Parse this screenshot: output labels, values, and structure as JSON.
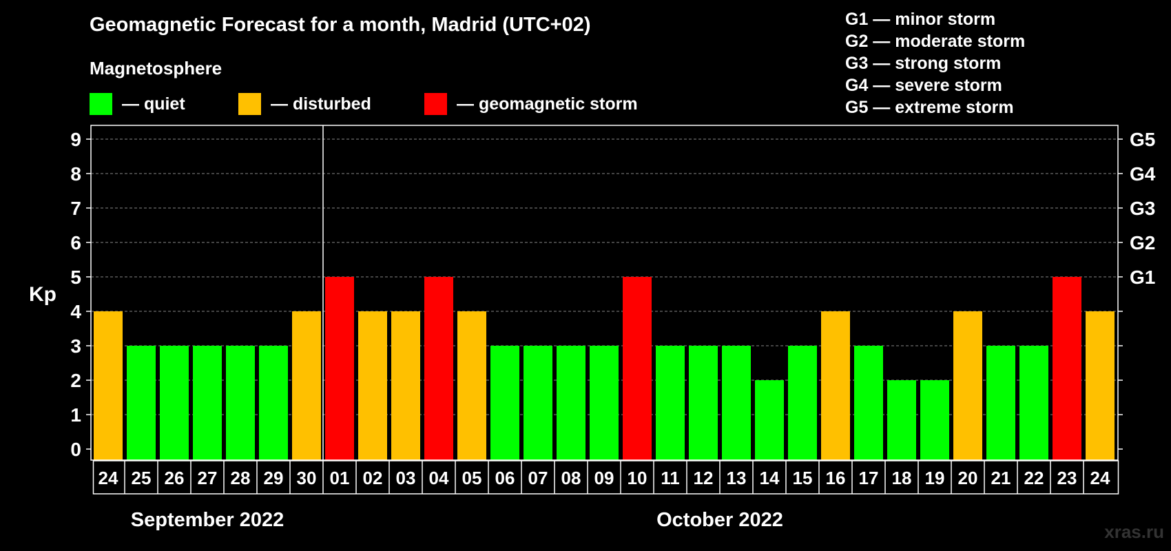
{
  "header": {
    "title": "Geomagnetic Forecast for a month, Madrid (UTC+02)",
    "subtitle": "Magnetosphere"
  },
  "legend": [
    {
      "label": "— quiet",
      "color": "#00ff00"
    },
    {
      "label": "— disturbed",
      "color": "#ffc000"
    },
    {
      "label": "— geomagnetic storm",
      "color": "#ff0000"
    }
  ],
  "storm_levels": [
    "G1 — minor storm",
    "G2 — moderate storm",
    "G3 — strong storm",
    "G4 — severe storm",
    "G5 — extreme storm"
  ],
  "watermark": "xras.ru",
  "chart_data": {
    "type": "bar",
    "ylabel": "Kp",
    "ylim": [
      0,
      9
    ],
    "yticks": [
      "0",
      "1",
      "2",
      "3",
      "4",
      "5",
      "6",
      "7",
      "8",
      "9"
    ],
    "right_ticks": [
      {
        "value": 5,
        "label": "G1"
      },
      {
        "value": 6,
        "label": "G2"
      },
      {
        "value": 7,
        "label": "G3"
      },
      {
        "value": 8,
        "label": "G4"
      },
      {
        "value": 9,
        "label": "G5"
      }
    ],
    "categories": [
      "24",
      "25",
      "26",
      "27",
      "28",
      "29",
      "30",
      "01",
      "02",
      "03",
      "04",
      "05",
      "06",
      "07",
      "08",
      "09",
      "10",
      "11",
      "12",
      "13",
      "14",
      "15",
      "16",
      "17",
      "18",
      "19",
      "20",
      "21",
      "22",
      "23",
      "24"
    ],
    "values": [
      4,
      3,
      3,
      3,
      3,
      3,
      4,
      5,
      4,
      4,
      5,
      4,
      3,
      3,
      3,
      3,
      5,
      3,
      3,
      3,
      2,
      3,
      4,
      3,
      2,
      2,
      4,
      3,
      3,
      5,
      4
    ],
    "color_thresholds": {
      "quiet_max": 3,
      "disturbed": 4,
      "storm_min": 5
    },
    "month_groups": [
      {
        "label": "September 2022",
        "start": 0,
        "count": 7
      },
      {
        "label": "October 2022",
        "start": 7,
        "count": 24
      }
    ],
    "grid": true
  }
}
